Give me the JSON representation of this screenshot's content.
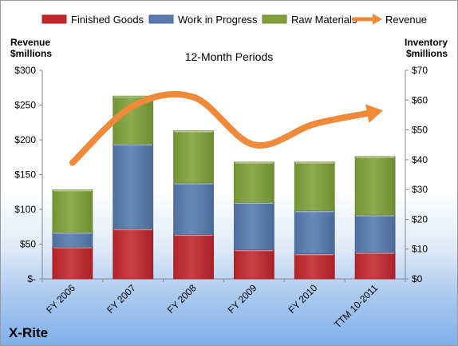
{
  "chart_data": {
    "type": "bar",
    "stacked": true,
    "title": "12-Month Periods",
    "brand": "X-Rite",
    "categories": [
      "FY 2006",
      "FY 2007",
      "FY 2008",
      "FY 2009",
      "FY 2010",
      "TTM 10-2011"
    ],
    "series": [
      {
        "name": "Finished Goods",
        "axis": "left",
        "color": "#c0262c",
        "values": [
          46,
          72,
          64,
          42,
          36,
          38
        ]
      },
      {
        "name": "Work in Progress",
        "axis": "left",
        "color": "#5579ae",
        "values": [
          21,
          122,
          74,
          68,
          62,
          54
        ]
      },
      {
        "name": "Raw Materials",
        "axis": "left",
        "color": "#7ea138",
        "values": [
          61,
          69,
          75,
          58,
          70,
          84
        ]
      },
      {
        "name": "Revenue",
        "type": "line",
        "axis": "right",
        "color": "#ef8a3a",
        "values": [
          39,
          58,
          61,
          45,
          52,
          56
        ]
      }
    ],
    "yLeft": {
      "label_line1": "Revenue",
      "label_line2": "$millions",
      "min": 0,
      "max": 300,
      "ticks": [
        0,
        50,
        100,
        150,
        200,
        250,
        300
      ],
      "tick_labels": [
        "$-",
        "$50",
        "$100",
        "$150",
        "$200",
        "$250",
        "$300"
      ]
    },
    "yRight": {
      "label_line1": "Inventory",
      "label_line2": "$millions",
      "min": 0,
      "max": 70,
      "ticks": [
        0,
        10,
        20,
        30,
        40,
        50,
        60,
        70
      ],
      "tick_labels": [
        "$0",
        "$10",
        "$20",
        "$30",
        "$40",
        "$50",
        "$60",
        "$70"
      ]
    },
    "grid": false,
    "legend_position": "top"
  }
}
